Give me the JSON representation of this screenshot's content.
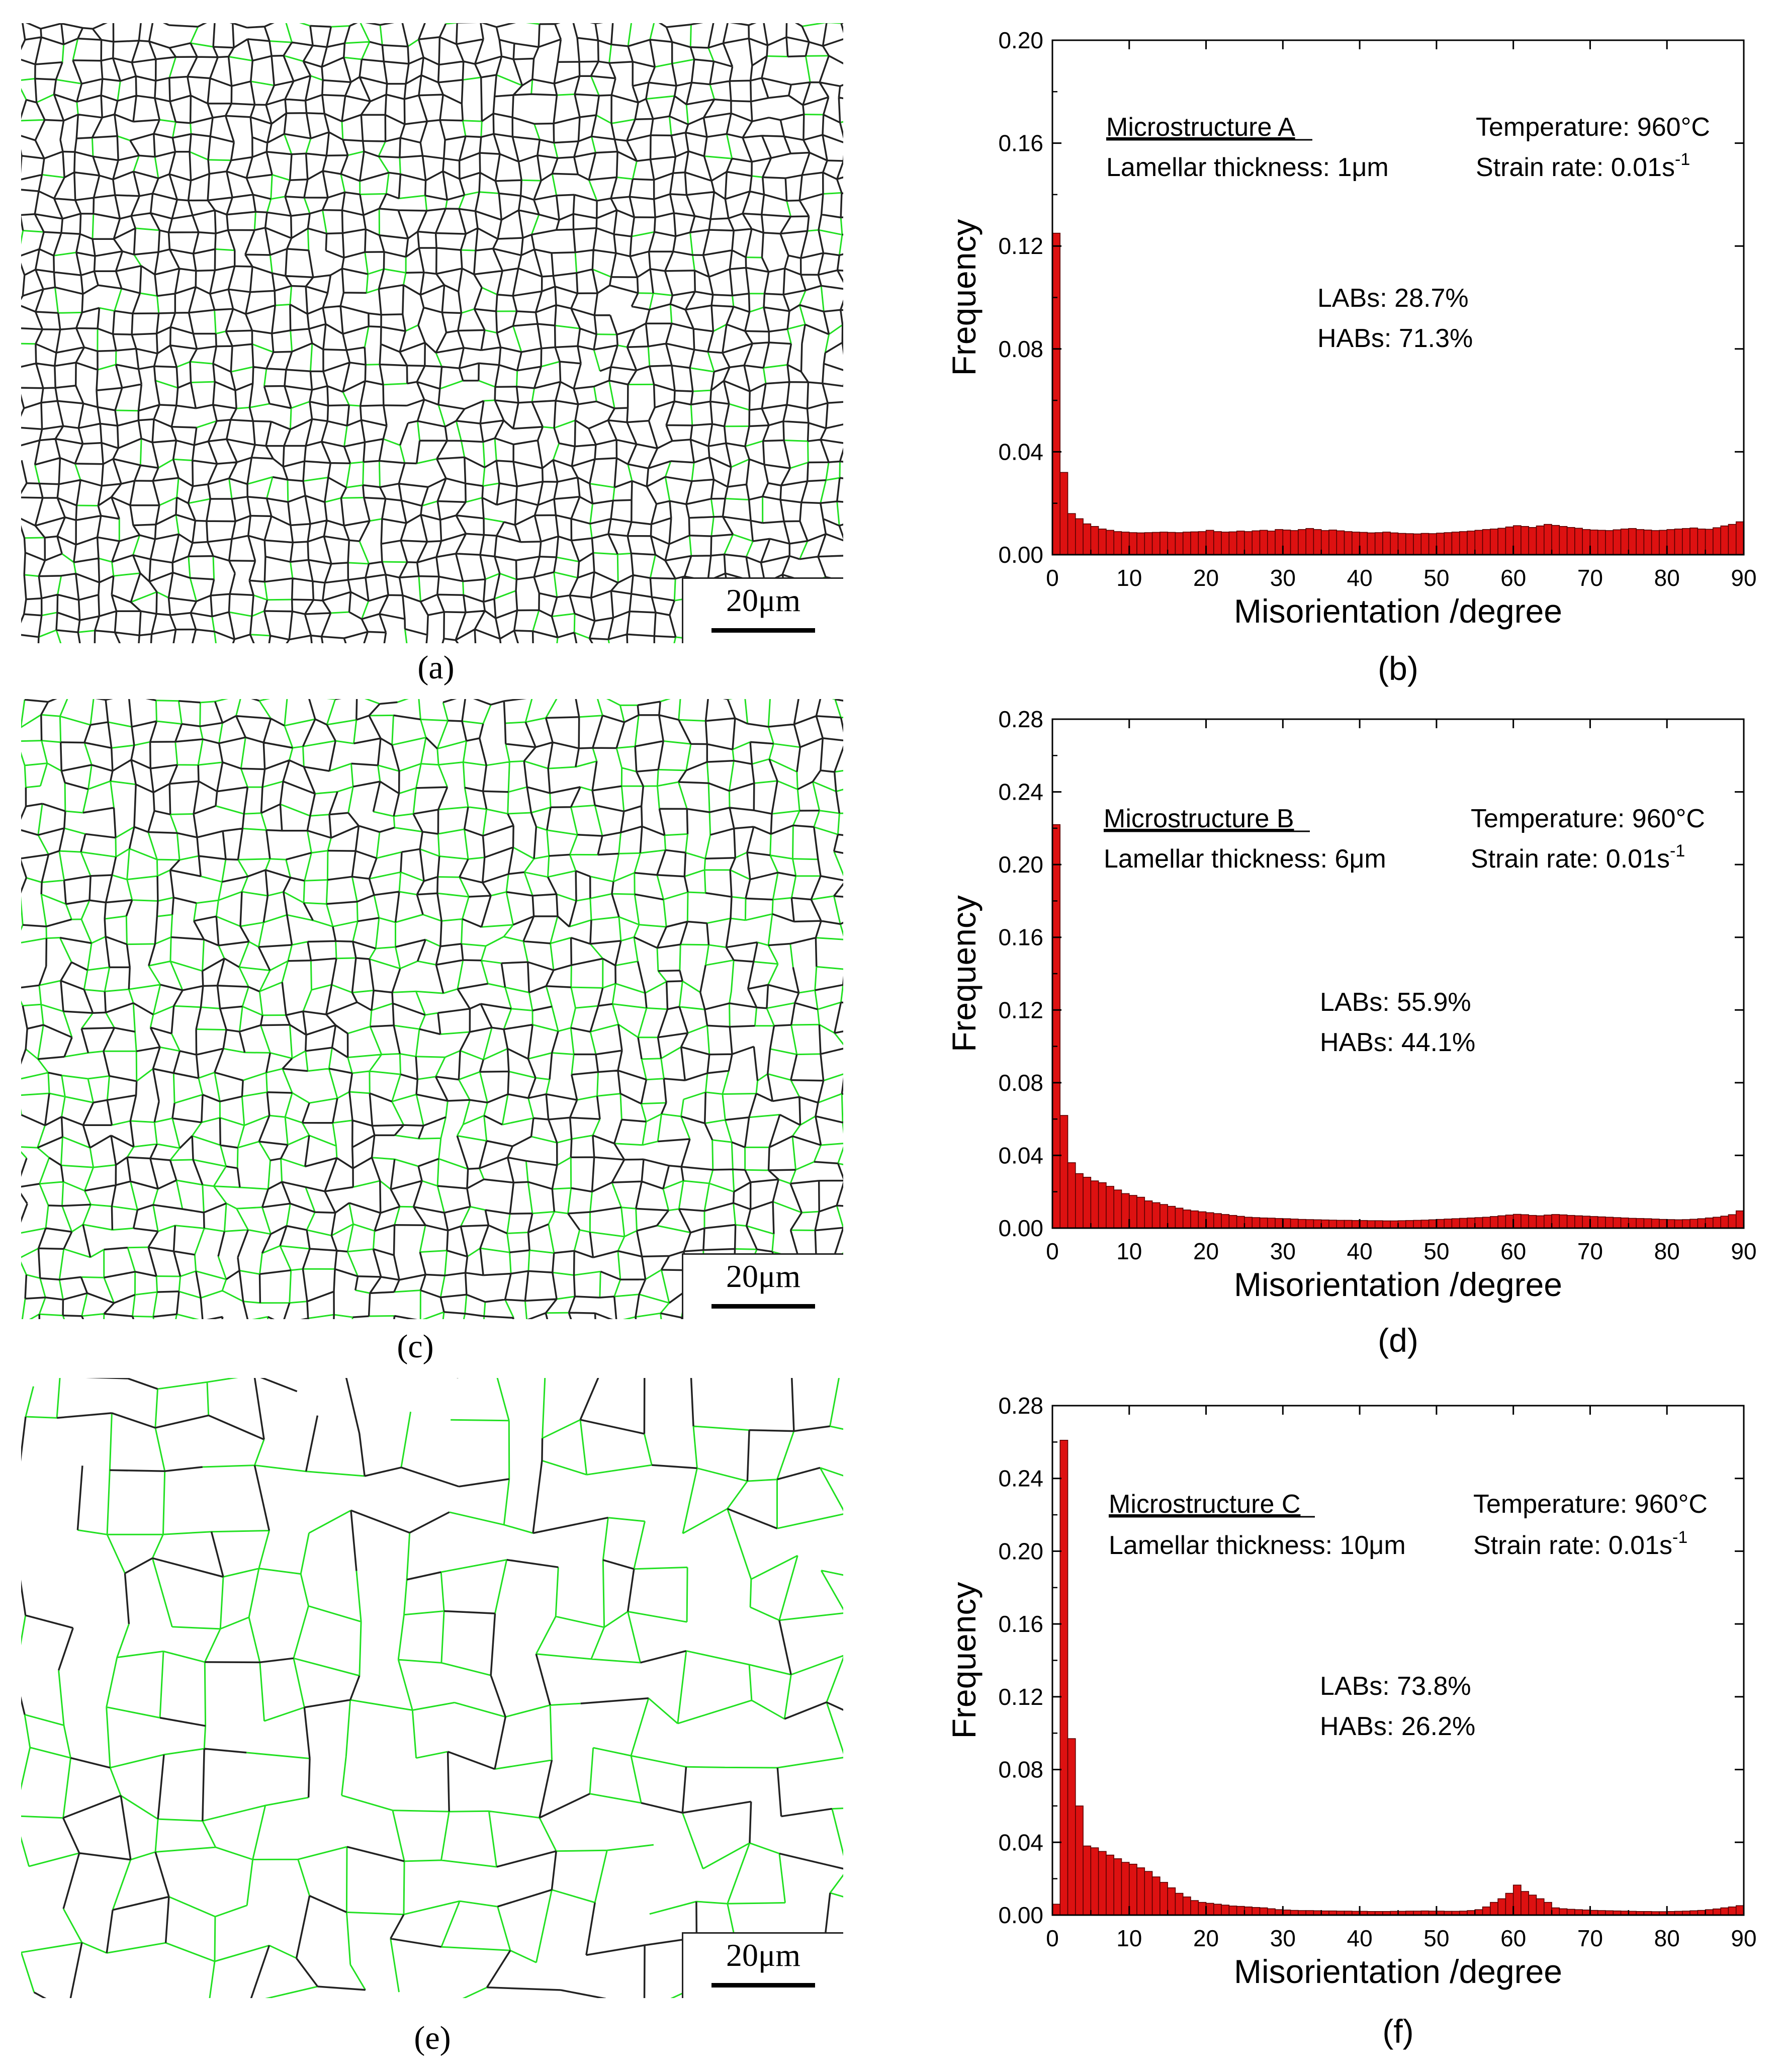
{
  "panels": [
    {
      "map": {
        "label": "(a)",
        "scale_bar": "20μm",
        "name": "ebsd-map-a"
      },
      "chart_label": "(b)"
    },
    {
      "map": {
        "label": "(c)",
        "scale_bar": "20μm",
        "name": "ebsd-map-c"
      },
      "chart_label": "(d)"
    },
    {
      "map": {
        "label": "(e)",
        "scale_bar": "20μm",
        "name": "ebsd-map-e"
      },
      "chart_label": "(f)"
    }
  ],
  "colors": {
    "bar_fill": "#dd1111",
    "bar_stroke": "#550000",
    "lab_boundary": "#22e022",
    "hab_boundary": "#222222"
  },
  "chart_data": [
    {
      "type": "bar",
      "xlabel": "Misorientation /degree",
      "ylabel": "Frequency",
      "xlim": [
        0,
        90
      ],
      "ylim": [
        0,
        0.2
      ],
      "xticks": [
        0,
        10,
        20,
        30,
        40,
        50,
        60,
        70,
        80,
        90
      ],
      "yticks": [
        "0.00",
        "0.04",
        "0.08",
        "0.12",
        "0.16",
        "0.20"
      ],
      "bin_width": 1,
      "annotations": {
        "microstructure": "Microstructure A",
        "lamellar": "Lamellar thickness: 1μm",
        "temperature": "Temperature: 960°C",
        "strain_rate": "Strain rate: 0.01s",
        "strain_rate_exp": "-1",
        "labs": "LABs: 28.7%",
        "habs": "HABs: 71.3%"
      },
      "values": [
        0.125,
        0.032,
        0.016,
        0.014,
        0.012,
        0.011,
        0.01,
        0.0095,
        0.009,
        0.0088,
        0.0086,
        0.0085,
        0.0086,
        0.0087,
        0.0088,
        0.0087,
        0.0086,
        0.0088,
        0.0089,
        0.009,
        0.0095,
        0.009,
        0.0088,
        0.0089,
        0.0092,
        0.009,
        0.0093,
        0.0095,
        0.0092,
        0.0098,
        0.0096,
        0.0094,
        0.0098,
        0.0102,
        0.0098,
        0.0094,
        0.0096,
        0.0093,
        0.009,
        0.0088,
        0.0087,
        0.0085,
        0.0086,
        0.0088,
        0.0085,
        0.0083,
        0.0082,
        0.0081,
        0.0083,
        0.0082,
        0.0084,
        0.0086,
        0.0088,
        0.009,
        0.0092,
        0.0095,
        0.0098,
        0.01,
        0.0103,
        0.0108,
        0.0113,
        0.011,
        0.0106,
        0.0112,
        0.0118,
        0.0114,
        0.011,
        0.0106,
        0.0103,
        0.0098,
        0.0096,
        0.0095,
        0.0094,
        0.0097,
        0.01,
        0.0102,
        0.0098,
        0.0096,
        0.0094,
        0.0095,
        0.0098,
        0.01,
        0.0102,
        0.0104,
        0.01,
        0.0099,
        0.0105,
        0.0112,
        0.0118,
        0.0128
      ]
    },
    {
      "type": "bar",
      "xlabel": "Misorientation /degree",
      "ylabel": "Frequency",
      "xlim": [
        0,
        90
      ],
      "ylim": [
        0,
        0.28
      ],
      "xticks": [
        0,
        10,
        20,
        30,
        40,
        50,
        60,
        70,
        80,
        90
      ],
      "yticks": [
        "0.00",
        "0.04",
        "0.08",
        "0.12",
        "0.16",
        "0.20",
        "0.24",
        "0.28"
      ],
      "bin_width": 1,
      "annotations": {
        "microstructure": "Microstructure B",
        "lamellar": "Lamellar thickness: 6μm",
        "temperature": "Temperature: 960°C",
        "strain_rate": "Strain rate: 0.01s",
        "strain_rate_exp": "-1",
        "labs": "LABs: 55.9%",
        "habs": "HABs: 44.1%"
      },
      "values": [
        0.222,
        0.062,
        0.036,
        0.03,
        0.028,
        0.026,
        0.025,
        0.023,
        0.021,
        0.019,
        0.018,
        0.017,
        0.015,
        0.014,
        0.013,
        0.012,
        0.011,
        0.01,
        0.0095,
        0.009,
        0.0085,
        0.008,
        0.0075,
        0.007,
        0.0065,
        0.006,
        0.0058,
        0.0056,
        0.0055,
        0.0053,
        0.0052,
        0.005,
        0.0048,
        0.0047,
        0.0046,
        0.0045,
        0.0044,
        0.0043,
        0.0043,
        0.0042,
        0.0042,
        0.0041,
        0.0041,
        0.004,
        0.004,
        0.0041,
        0.0042,
        0.0043,
        0.0044,
        0.0046,
        0.0048,
        0.005,
        0.0052,
        0.0054,
        0.0056,
        0.0058,
        0.006,
        0.0064,
        0.0068,
        0.0072,
        0.0076,
        0.0074,
        0.007,
        0.0068,
        0.0072,
        0.0075,
        0.0073,
        0.007,
        0.0068,
        0.0066,
        0.0064,
        0.0062,
        0.006,
        0.0058,
        0.0056,
        0.0054,
        0.0053,
        0.0052,
        0.005,
        0.0048,
        0.0047,
        0.0046,
        0.0047,
        0.0049,
        0.0052,
        0.0056,
        0.006,
        0.0066,
        0.0074,
        0.0095
      ]
    },
    {
      "type": "bar",
      "xlabel": "Misorientation /degree",
      "ylabel": "Frequency",
      "xlim": [
        0,
        90
      ],
      "ylim": [
        0,
        0.28
      ],
      "xticks": [
        0,
        10,
        20,
        30,
        40,
        50,
        60,
        70,
        80,
        90
      ],
      "yticks": [
        "0.00",
        "0.04",
        "0.08",
        "0.12",
        "0.16",
        "0.20",
        "0.24",
        "0.28"
      ],
      "bin_width": 1,
      "annotations": {
        "microstructure": "Microstructure C",
        "lamellar": "Lamellar thickness: 10μm",
        "temperature": "Temperature: 960°C",
        "strain_rate": "Strain rate: 0.01s",
        "strain_rate_exp": "-1",
        "labs": "LABs: 73.8%",
        "habs": "HABs: 26.2%"
      },
      "values": [
        0.006,
        0.261,
        0.097,
        0.06,
        0.038,
        0.037,
        0.035,
        0.033,
        0.031,
        0.029,
        0.028,
        0.026,
        0.024,
        0.021,
        0.018,
        0.015,
        0.012,
        0.01,
        0.008,
        0.007,
        0.0065,
        0.006,
        0.0055,
        0.005,
        0.0048,
        0.0045,
        0.0042,
        0.004,
        0.0035,
        0.003,
        0.0028,
        0.0026,
        0.0025,
        0.0025,
        0.0024,
        0.0023,
        0.0023,
        0.0022,
        0.0022,
        0.0021,
        0.0021,
        0.002,
        0.002,
        0.002,
        0.0021,
        0.0021,
        0.0022,
        0.0022,
        0.0023,
        0.0022,
        0.0022,
        0.0021,
        0.0021,
        0.0022,
        0.0025,
        0.003,
        0.0045,
        0.007,
        0.009,
        0.012,
        0.0165,
        0.013,
        0.011,
        0.009,
        0.007,
        0.004,
        0.0035,
        0.0032,
        0.003,
        0.0028,
        0.0026,
        0.0025,
        0.0024,
        0.0023,
        0.0022,
        0.0021,
        0.002,
        0.002,
        0.0019,
        0.0019,
        0.002,
        0.0021,
        0.0022,
        0.0024,
        0.0026,
        0.003,
        0.0034,
        0.004,
        0.0045,
        0.0052
      ]
    }
  ]
}
